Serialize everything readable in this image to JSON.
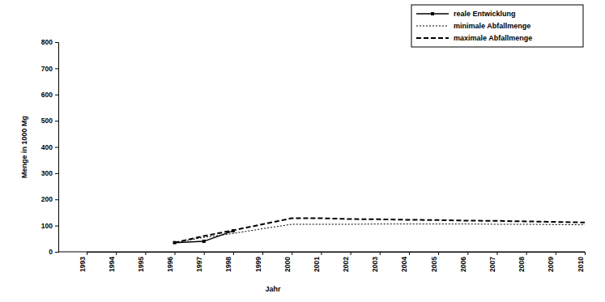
{
  "chart_data": {
    "type": "line",
    "x_label": "Jahr",
    "y_label": "Menge in 1000 Mg",
    "categories": [
      "1993",
      "1994",
      "1995",
      "1996",
      "1997",
      "1998",
      "1999",
      "2000",
      "2001",
      "2002",
      "2003",
      "2004",
      "2005",
      "2006",
      "2007",
      "2008",
      "2009",
      "2010"
    ],
    "series": [
      {
        "name": "reale Entwicklung",
        "color": "#000000",
        "line_style": "solid",
        "marker": "square",
        "values": [
          null,
          null,
          null,
          35,
          40,
          80,
          null,
          null,
          null,
          null,
          null,
          null,
          null,
          null,
          null,
          null,
          null,
          null
        ]
      },
      {
        "name": "minimale Abfallmenge",
        "color": "#000000",
        "line_style": "dotted",
        "marker": "none",
        "values": [
          null,
          null,
          null,
          35,
          55,
          70,
          88,
          105,
          105,
          105,
          106,
          106,
          106,
          106,
          105,
          105,
          104,
          103
        ]
      },
      {
        "name": "maximale Abfallmenge",
        "color": "#000000",
        "line_style": "dashed",
        "marker": "none",
        "values": [
          null,
          null,
          null,
          35,
          60,
          82,
          105,
          128,
          128,
          125,
          124,
          122,
          121,
          119,
          118,
          116,
          114,
          112
        ]
      }
    ],
    "ylim": [
      0,
      800
    ],
    "yticks": [
      0,
      100,
      200,
      300,
      400,
      500,
      600,
      700,
      800
    ],
    "grid": false,
    "legend": "upper right"
  }
}
